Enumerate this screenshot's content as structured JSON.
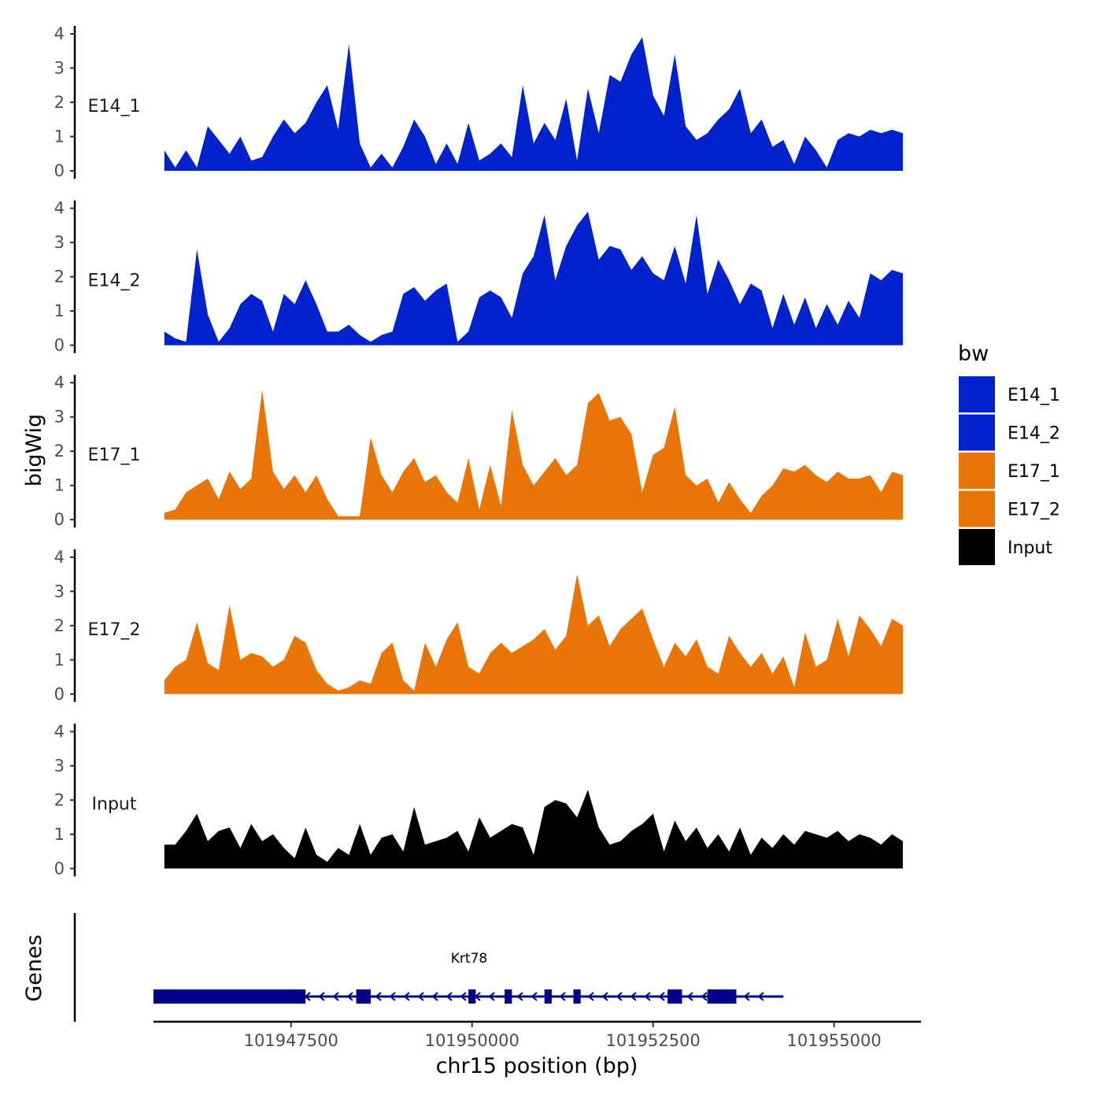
{
  "chart_data": {
    "type": "area",
    "chromosome": "chr15",
    "xlabel": "chr15 position (bp)",
    "ylabel": "bigWig",
    "gene_panel_label": "Genes",
    "xlim": [
      101945600,
      101956200
    ],
    "ylim": [
      0,
      4
    ],
    "x_ticks": [
      101947500,
      101950000,
      101952500,
      101955000
    ],
    "x_tick_labels": [
      "101947500",
      "101950000",
      "101952500",
      "101955000"
    ],
    "y_ticks": [
      0,
      1,
      2,
      3,
      4
    ],
    "y_tick_labels": [
      "0",
      "1",
      "2",
      "3",
      "4"
    ],
    "legend": {
      "title": "bw",
      "placement": "right",
      "entries": [
        {
          "label": "E14_1",
          "color": "#0022cc"
        },
        {
          "label": "E14_2",
          "color": "#0022cc"
        },
        {
          "label": "E17_1",
          "color": "#e87506"
        },
        {
          "label": "E17_2",
          "color": "#e87506"
        },
        {
          "label": "Input",
          "color": "#000000"
        }
      ]
    },
    "x": [
      101945750,
      101945900,
      101946050,
      101946200,
      101946350,
      101946500,
      101946650,
      101946800,
      101946950,
      101947100,
      101947250,
      101947400,
      101947550,
      101947700,
      101947850,
      101948000,
      101948150,
      101948300,
      101948450,
      101948600,
      101948750,
      101948900,
      101949050,
      101949200,
      101949350,
      101949500,
      101949650,
      101949800,
      101949950,
      101950100,
      101950250,
      101950400,
      101950550,
      101950700,
      101950850,
      101951000,
      101951150,
      101951300,
      101951450,
      101951600,
      101951750,
      101951900,
      101952050,
      101952200,
      101952350,
      101952500,
      101952650,
      101952800,
      101952950,
      101953100,
      101953250,
      101953400,
      101953550,
      101953700,
      101953850,
      101954000,
      101954150,
      101954300,
      101954450,
      101954600,
      101954750,
      101954900,
      101955050,
      101955200,
      101955350,
      101955500,
      101955650,
      101955800,
      101955950
    ],
    "series": [
      {
        "name": "E14_1",
        "color": "#0022cc",
        "values": [
          0.6,
          0.1,
          0.6,
          0.1,
          1.3,
          0.9,
          0.5,
          1.0,
          0.3,
          0.4,
          1.0,
          1.5,
          1.1,
          1.4,
          2.0,
          2.5,
          1.2,
          3.7,
          0.8,
          0.1,
          0.5,
          0.1,
          0.7,
          1.5,
          1.0,
          0.2,
          0.8,
          0.2,
          1.4,
          0.3,
          0.5,
          0.8,
          0.4,
          2.5,
          0.8,
          1.4,
          0.9,
          2.1,
          0.3,
          2.4,
          1.1,
          2.8,
          2.6,
          3.4,
          3.9,
          2.2,
          1.6,
          3.4,
          1.3,
          0.9,
          1.1,
          1.5,
          1.8,
          2.4,
          1.1,
          1.5,
          0.7,
          0.9,
          0.2,
          1.0,
          0.6,
          0.1,
          0.9,
          1.1,
          1.0,
          1.2,
          1.1,
          1.2,
          1.1
        ]
      },
      {
        "name": "E14_2",
        "color": "#0022cc",
        "values": [
          0.4,
          0.2,
          0.1,
          2.8,
          0.9,
          0.1,
          0.5,
          1.2,
          1.5,
          1.3,
          0.4,
          1.5,
          1.2,
          1.9,
          1.2,
          0.4,
          0.4,
          0.6,
          0.3,
          0.1,
          0.3,
          0.4,
          1.5,
          1.7,
          1.3,
          1.6,
          1.8,
          0.1,
          0.4,
          1.4,
          1.6,
          1.4,
          0.8,
          2.1,
          2.6,
          3.8,
          1.9,
          2.9,
          3.5,
          3.9,
          2.5,
          2.9,
          2.8,
          2.2,
          2.6,
          2.1,
          1.9,
          2.9,
          1.8,
          3.8,
          1.5,
          2.5,
          1.9,
          1.2,
          1.8,
          1.6,
          0.5,
          1.5,
          0.6,
          1.4,
          0.5,
          1.2,
          0.6,
          1.3,
          0.8,
          2.1,
          1.9,
          2.2,
          2.1
        ]
      },
      {
        "name": "E17_1",
        "color": "#e87506",
        "values": [
          0.2,
          0.3,
          0.8,
          1.0,
          1.2,
          0.6,
          1.4,
          0.9,
          1.2,
          3.8,
          1.4,
          0.9,
          1.3,
          0.8,
          1.3,
          0.6,
          0.1,
          0.1,
          0.1,
          2.4,
          1.3,
          0.8,
          1.4,
          1.8,
          1.1,
          1.3,
          0.8,
          0.5,
          1.8,
          0.3,
          1.6,
          0.4,
          3.2,
          1.6,
          1.0,
          1.4,
          1.8,
          1.3,
          1.6,
          3.4,
          3.7,
          2.9,
          3.0,
          2.5,
          0.8,
          1.9,
          2.1,
          3.3,
          1.3,
          1.0,
          1.2,
          0.5,
          1.1,
          0.6,
          0.2,
          0.7,
          1.0,
          1.5,
          1.4,
          1.6,
          1.3,
          1.1,
          1.4,
          1.2,
          1.2,
          1.3,
          0.8,
          1.4,
          1.3
        ]
      },
      {
        "name": "E17_2",
        "color": "#e87506",
        "values": [
          0.4,
          0.8,
          1.0,
          2.1,
          0.9,
          0.7,
          2.6,
          1.0,
          1.2,
          1.1,
          0.8,
          1.0,
          1.7,
          1.5,
          0.7,
          0.3,
          0.1,
          0.2,
          0.4,
          0.3,
          1.2,
          1.5,
          0.4,
          0.1,
          1.5,
          0.8,
          1.6,
          2.1,
          0.8,
          0.6,
          1.2,
          1.5,
          1.2,
          1.4,
          1.6,
          1.9,
          1.3,
          1.7,
          3.5,
          2.0,
          2.3,
          1.4,
          1.9,
          2.2,
          2.5,
          1.6,
          0.8,
          1.5,
          1.1,
          1.6,
          0.8,
          0.6,
          1.7,
          1.2,
          0.8,
          1.2,
          0.6,
          1.1,
          0.2,
          1.8,
          0.8,
          1.0,
          2.2,
          1.1,
          2.3,
          1.9,
          1.4,
          2.2,
          2.0
        ]
      },
      {
        "name": "Input",
        "color": "#000000",
        "values": [
          0.7,
          0.7,
          1.1,
          1.6,
          0.8,
          1.1,
          1.2,
          0.6,
          1.3,
          0.8,
          1.0,
          0.6,
          0.3,
          1.2,
          0.4,
          0.2,
          0.6,
          0.4,
          1.3,
          0.4,
          0.9,
          1.0,
          0.5,
          1.8,
          0.7,
          0.8,
          0.9,
          1.1,
          0.5,
          1.5,
          0.9,
          1.1,
          1.3,
          1.2,
          0.4,
          1.8,
          2.0,
          1.9,
          1.5,
          2.3,
          1.2,
          0.7,
          0.8,
          1.1,
          1.3,
          1.6,
          0.5,
          1.4,
          0.8,
          1.2,
          0.6,
          1.0,
          0.5,
          1.2,
          0.4,
          0.9,
          0.6,
          1.0,
          0.7,
          1.1,
          1.0,
          0.9,
          1.1,
          0.8,
          1.0,
          0.9,
          0.7,
          1.0,
          0.8
        ]
      }
    ],
    "gene": {
      "name": "Krt78",
      "strand": "-",
      "start": 101945600,
      "end": 101954300,
      "color": "#00008b",
      "exons": [
        [
          101945600,
          101947700
        ],
        [
          101948400,
          101948600
        ],
        [
          101949950,
          101950050
        ],
        [
          101950450,
          101950550
        ],
        [
          101951000,
          101951100
        ],
        [
          101951400,
          101951500
        ],
        [
          101952700,
          101952900
        ],
        [
          101953250,
          101953650
        ]
      ]
    }
  }
}
